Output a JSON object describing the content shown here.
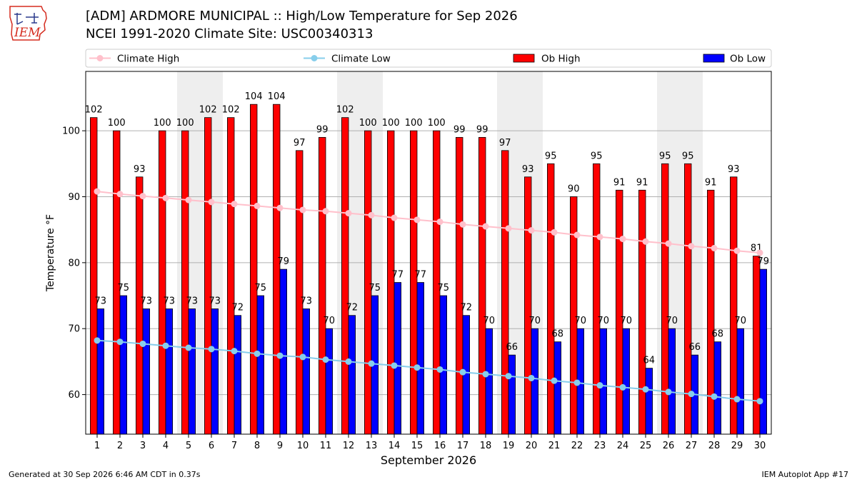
{
  "header": {
    "title_line1": "[ADM] ARDMORE MUNICIPAL :: High/Low Temperature for Sep 2026",
    "title_line2": "NCEI 1991-2020 Climate Site: USC00340313",
    "logo_text": "IEM"
  },
  "footer": {
    "left": "Generated at 30 Sep 2026 6:46 AM CDT in 0.37s",
    "right": "IEM Autoplot App #17"
  },
  "colors": {
    "ob_high": "#ff0000",
    "ob_low": "#0000ff",
    "climate_high": "#ffc0cb",
    "climate_low": "#87ceeb",
    "weekend_shade": "#eeeeee",
    "grid": "#b0b0b0",
    "logo": "#d52b1e"
  },
  "chart_data": {
    "type": "bar",
    "xlabel": "September 2026",
    "ylabel": "Temperature °F",
    "ylim": [
      54,
      109
    ],
    "yticks": [
      60,
      70,
      80,
      90,
      100
    ],
    "grid": "horizontal",
    "legend_position": "top",
    "categories": [
      1,
      2,
      3,
      4,
      5,
      6,
      7,
      8,
      9,
      10,
      11,
      12,
      13,
      14,
      15,
      16,
      17,
      18,
      19,
      20,
      21,
      22,
      23,
      24,
      25,
      26,
      27,
      28,
      29,
      30
    ],
    "shaded_weekend_days": [
      5,
      6,
      12,
      13,
      19,
      20,
      26,
      27
    ],
    "series": [
      {
        "name": "Ob High",
        "kind": "bar",
        "values": [
          102,
          100,
          93,
          100,
          100,
          102,
          102,
          104,
          104,
          97,
          99,
          102,
          100,
          100,
          100,
          100,
          99,
          99,
          97,
          93,
          95,
          90,
          95,
          91,
          91,
          95,
          95,
          91,
          93,
          81
        ]
      },
      {
        "name": "Ob Low",
        "kind": "bar",
        "values": [
          73,
          75,
          73,
          73,
          73,
          73,
          72,
          75,
          79,
          73,
          70,
          72,
          75,
          77,
          77,
          75,
          72,
          70,
          66,
          70,
          68,
          70,
          70,
          70,
          64,
          70,
          66,
          68,
          70,
          79
        ]
      },
      {
        "name": "Climate High",
        "kind": "line",
        "values": [
          90.8,
          90.4,
          90.1,
          89.8,
          89.5,
          89.2,
          88.9,
          88.6,
          88.3,
          88.0,
          87.8,
          87.5,
          87.2,
          86.8,
          86.5,
          86.2,
          85.8,
          85.5,
          85.2,
          84.9,
          84.6,
          84.2,
          83.9,
          83.6,
          83.2,
          82.9,
          82.5,
          82.2,
          81.8,
          81.5
        ]
      },
      {
        "name": "Climate Low",
        "kind": "line",
        "values": [
          68.2,
          68.0,
          67.7,
          67.4,
          67.1,
          66.9,
          66.6,
          66.2,
          65.9,
          65.7,
          65.3,
          65.0,
          64.7,
          64.4,
          64.1,
          63.8,
          63.4,
          63.1,
          62.8,
          62.5,
          62.1,
          61.8,
          61.4,
          61.1,
          60.8,
          60.4,
          60.1,
          59.7,
          59.3,
          59.0
        ]
      }
    ]
  }
}
